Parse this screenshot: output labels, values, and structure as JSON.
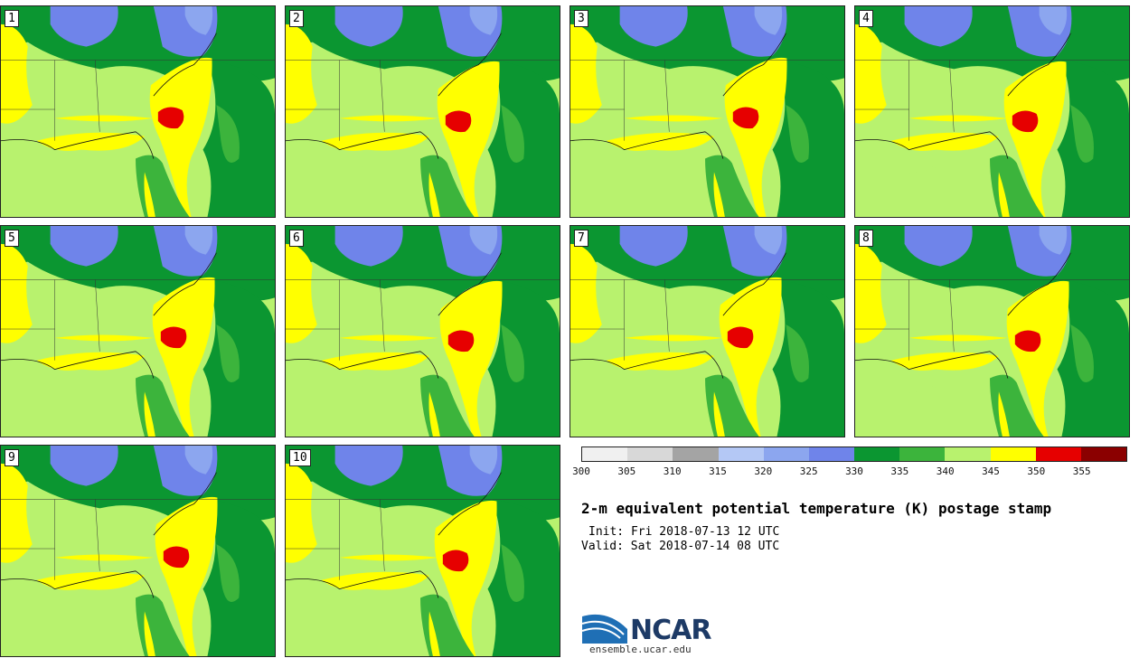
{
  "panels": [
    "1",
    "2",
    "3",
    "4",
    "5",
    "6",
    "7",
    "8",
    "9",
    "10"
  ],
  "colorbar": {
    "ticks": [
      "300",
      "305",
      "310",
      "315",
      "320",
      "325",
      "330",
      "335",
      "340",
      "345",
      "350",
      "355"
    ],
    "colors": [
      "#f0f0f0",
      "#d8d8d8",
      "#a4a4a4",
      "#b4c8f5",
      "#8ca6ef",
      "#6f84ea",
      "#0b9631",
      "#3cb43c",
      "#b8f26e",
      "#ffff00",
      "#e60000",
      "#8b0000"
    ]
  },
  "header": {
    "title": "2-m equivalent potential temperature (K) postage stamp",
    "init": "Init: Fri 2018-07-13 12 UTC",
    "valid": "Valid: Sat 2018-07-14 08 UTC"
  },
  "branding": {
    "logo": "NCAR",
    "site": "ensemble.ucar.edu"
  }
}
